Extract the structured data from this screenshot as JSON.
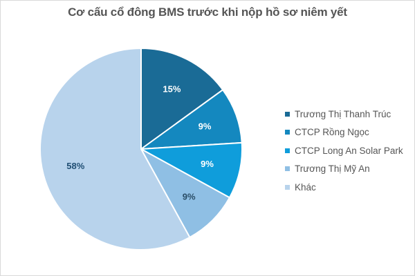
{
  "title": "Cơ cấu cổ đông BMS trước khi nộp hồ sơ niêm yết",
  "chart_data": {
    "type": "pie",
    "title": "Cơ cấu cổ đông BMS trước khi nộp hồ sơ niêm yết",
    "legend_position": "right",
    "slices": [
      {
        "name": "Trương Thị Thanh Trúc",
        "value": 15,
        "label": "15%",
        "color": "#1a6b96",
        "label_color": "#ffffff"
      },
      {
        "name": "CTCP Rồng Ngọc",
        "value": 9,
        "label": "9%",
        "color": "#1488bf",
        "label_color": "#ffffff"
      },
      {
        "name": "CTCP Long An Solar Park",
        "value": 9,
        "label": "9%",
        "color": "#0f9ddb",
        "label_color": "#ffffff"
      },
      {
        "name": "Trương Thị Mỹ An",
        "value": 9,
        "label": "9%",
        "color": "#8fbfe4",
        "label_color": "#2a4d66"
      },
      {
        "name": "Khác",
        "value": 58,
        "label": "58%",
        "color": "#b8d3ec",
        "label_color": "#1f4e73"
      }
    ]
  }
}
